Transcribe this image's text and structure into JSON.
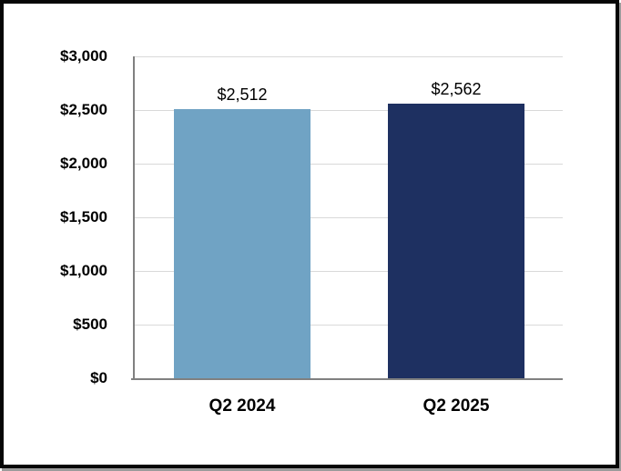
{
  "chart_data": {
    "type": "bar",
    "title": "",
    "categories": [
      "Q2 2024",
      "Q2 2025"
    ],
    "values": [
      2512,
      2562
    ],
    "value_labels": [
      "$2,512",
      "$2,562"
    ],
    "series": [
      {
        "name": "Q2 2024",
        "values": [
          2512
        ],
        "color": "#70A3C4"
      },
      {
        "name": "Q2 2025",
        "values": [
          2562
        ],
        "color": "#1E3061"
      }
    ],
    "bar_colors": [
      "#70A3C4",
      "#1E3061"
    ],
    "xlabel": "",
    "ylabel": "",
    "ylim": [
      0,
      3000
    ],
    "ytick_interval": 500,
    "ytick_labels": [
      "$0",
      "$500",
      "$1,000",
      "$1,500",
      "$2,000",
      "$2,500",
      "$3,000"
    ],
    "grid": true,
    "legend_position": "none",
    "gridline_color": "#D9D9D9",
    "axis_color": "#808080",
    "text_color": "#000000",
    "background_color": "#FFFFFF",
    "frame_border_color": "#000000"
  }
}
